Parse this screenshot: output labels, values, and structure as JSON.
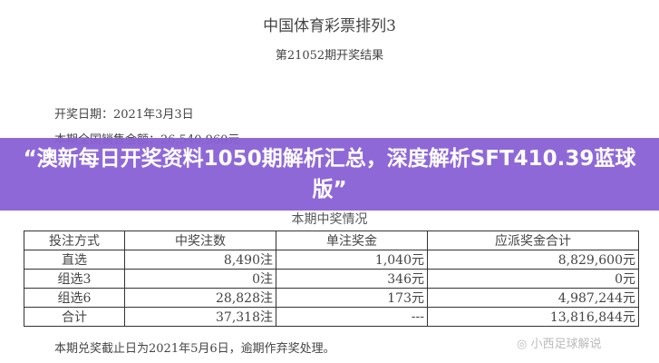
{
  "document": {
    "title": "中国体育彩票排列3",
    "subtitle": "第21052期开奖结果",
    "draw_date": "开奖日期：2021年3月3日",
    "sales": "本期全国销售金额：26,540,960元",
    "section_title": "本期中奖情况",
    "table": {
      "headers": [
        "投注方式",
        "中奖注数",
        "单注奖金",
        "应派奖金合计"
      ],
      "rows": [
        [
          "直选",
          "8,490注",
          "1,040元",
          "8,829,600元"
        ],
        [
          "组选3",
          "0注",
          "346元",
          "0元"
        ],
        [
          "组选6",
          "28,828注",
          "173元",
          "4,987,244元"
        ],
        [
          "合计",
          "37,318注",
          "---",
          "13,816,844元"
        ]
      ]
    },
    "footer": "本期兑奖截止日为2021年5月6日，逾期作弃奖处理。"
  },
  "banner": {
    "text": "“澳新每日开奖资料1050期解析汇总，深度解析SFT410.39蓝球版”",
    "color": "#8960d6"
  },
  "watermark": "小西足球解说"
}
